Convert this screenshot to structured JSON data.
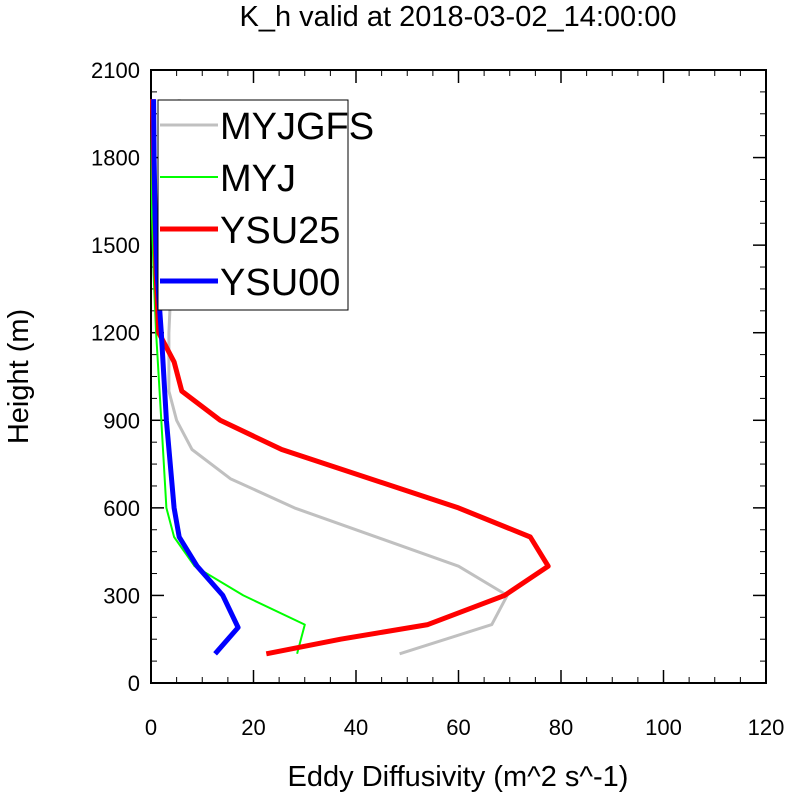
{
  "chart_data": {
    "type": "line",
    "title": "K_h valid at 2018-03-02_14:00:00",
    "xlabel": "Eddy Diffusivity (m^2 s^-1)",
    "ylabel": "Height (m)",
    "xlim": [
      0,
      120
    ],
    "ylim": [
      0,
      2100
    ],
    "xticks": [
      0,
      20,
      40,
      60,
      80,
      100,
      120
    ],
    "yticks": [
      0,
      300,
      600,
      900,
      1200,
      1500,
      1800,
      2100
    ],
    "xtick_labels": [
      "0",
      "20",
      "40",
      "60",
      "80",
      "100",
      "120"
    ],
    "ytick_labels": [
      "0",
      "300",
      "600",
      "900",
      "1200",
      "1500",
      "1800",
      "2100"
    ],
    "legend_position": "top-left",
    "grid": false,
    "series": [
      {
        "name": "MYJGFS",
        "color": "#c0c0c0",
        "width": 3,
        "x": [
          48.5,
          66.5,
          69.5,
          60,
          28,
          15.5,
          8,
          5,
          3.5,
          3.5,
          4,
          5,
          5.5,
          5.5
        ],
        "y": [
          100,
          200,
          300,
          400,
          600,
          700,
          800,
          900,
          1000,
          1200,
          1400,
          1600,
          1800,
          2000
        ]
      },
      {
        "name": "MYJ",
        "color": "#00ff00",
        "width": 2,
        "x": [
          28.5,
          30,
          18,
          8.5,
          4.5,
          3,
          2,
          1,
          0.5,
          0.2,
          0.1,
          0.1
        ],
        "y": [
          100,
          200,
          300,
          400,
          500,
          600,
          900,
          1200,
          1400,
          1600,
          1800,
          2000
        ]
      },
      {
        "name": "YSU25",
        "color": "#ff0000",
        "width": 5,
        "x": [
          22.5,
          37,
          54,
          69,
          77.5,
          74,
          60,
          25.5,
          13.5,
          6,
          4.5,
          1.5,
          1,
          0.8,
          0.5,
          0.3
        ],
        "y": [
          100,
          150,
          200,
          300,
          400,
          500,
          600,
          800,
          900,
          1000,
          1100,
          1200,
          1400,
          1600,
          1800,
          2000
        ]
      },
      {
        "name": "YSU00",
        "color": "#0000ff",
        "width": 5,
        "x": [
          12.5,
          17,
          14,
          9,
          5.5,
          4.5,
          3,
          2,
          1.2,
          0.8,
          0.6,
          0.5
        ],
        "y": [
          100,
          190,
          300,
          400,
          500,
          600,
          900,
          1200,
          1400,
          1600,
          1800,
          2000
        ]
      }
    ]
  }
}
